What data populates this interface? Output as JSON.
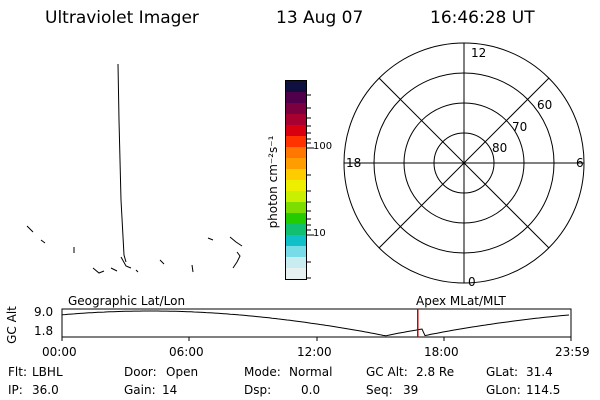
{
  "header": {
    "title": "Ultraviolet Imager",
    "date": "13 Aug 07",
    "time": "16:46:28 UT"
  },
  "colorbar": {
    "unit_label": "photon cm⁻²s⁻¹",
    "tick_labels": [
      "100",
      "10"
    ],
    "scale": "log",
    "colors": [
      "#101040",
      "#50004a",
      "#7a0040",
      "#a80030",
      "#d80010",
      "#ff3300",
      "#ff7700",
      "#ff9d00",
      "#ffcc00",
      "#eeee00",
      "#c8f000",
      "#7ddd00",
      "#22cc00",
      "#10c070",
      "#10c0c8",
      "#78dce8",
      "#c8ecf0",
      "#e6f2f2"
    ]
  },
  "polar_plot": {
    "mlt_labels": {
      "top": "12",
      "left": "18",
      "right": "6",
      "bottom": "0"
    },
    "lat_labels": [
      "60",
      "70",
      "80"
    ]
  },
  "timeline": {
    "left_label": "Geographic Lat/Lon",
    "right_label": "Apex MLat/MLT",
    "y_axis_label": "GC Alt",
    "y_ticks": [
      "9.0",
      "1.8"
    ],
    "x_ticks": [
      "00:00",
      "06:00",
      "12:00",
      "18:00",
      "23:59"
    ],
    "cursor_time": "16:46:28",
    "cursor_color": "#cc0000"
  },
  "info": {
    "row1": [
      {
        "label": "Flt:",
        "value": "LBHL"
      },
      {
        "label": "Door:",
        "value": "Open"
      },
      {
        "label": "Mode:",
        "value": "Normal"
      },
      {
        "label": "GC Alt:",
        "value": "2.8 Re"
      },
      {
        "label": "GLat:",
        "value": "31.4"
      }
    ],
    "row2": [
      {
        "label": "IP:",
        "value": "36.0"
      },
      {
        "label": "Gain:",
        "value": "14"
      },
      {
        "label": "Dsp:",
        "value": "0.0"
      },
      {
        "label": "Seq:",
        "value": "39"
      },
      {
        "label": "GLon:",
        "value": "114.5"
      }
    ]
  }
}
